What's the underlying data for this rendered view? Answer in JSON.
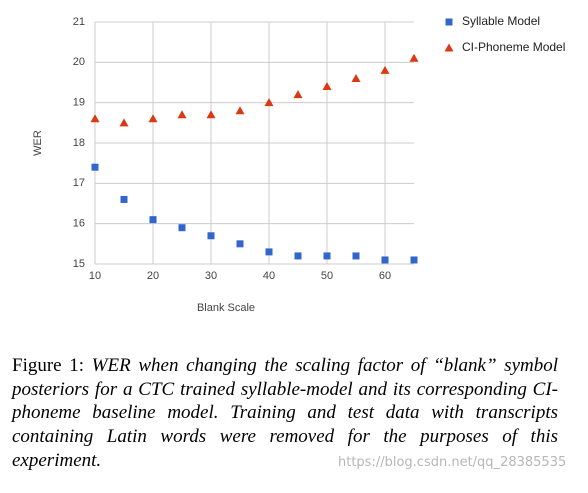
{
  "chart_data": {
    "type": "scatter",
    "x_label": "Blank Scale",
    "y_label": "WER",
    "x": [
      10,
      15,
      20,
      25,
      30,
      35,
      40,
      45,
      50,
      55,
      60,
      65
    ],
    "series": [
      {
        "name": "Syllable Model",
        "color": "#3366cc",
        "marker": "square",
        "values": [
          17.4,
          16.6,
          16.1,
          15.9,
          15.7,
          15.5,
          15.3,
          15.2,
          15.2,
          15.2,
          15.1,
          15.1
        ]
      },
      {
        "name": "CI-Phoneme Model",
        "color": "#dc3912",
        "marker": "triangle",
        "values": [
          18.6,
          18.5,
          18.6,
          18.7,
          18.7,
          18.8,
          19.0,
          19.2,
          19.4,
          19.6,
          19.8,
          20.1
        ]
      }
    ],
    "xlim": [
      10,
      65
    ],
    "ylim": [
      15,
      21
    ],
    "xticks": [
      10,
      20,
      30,
      40,
      50,
      60
    ],
    "yticks": [
      15,
      16,
      17,
      18,
      19,
      20,
      21
    ],
    "grid": true,
    "legend": "right"
  },
  "caption": {
    "label": "Figure 1:",
    "text": "WER when changing the scaling factor of “blank” symbol posteriors for a CTC trained syllable-model and its corresponding CI-phoneme baseline model. Training and test data with transcripts containing Latin words were removed for the purposes of this experiment."
  },
  "watermark": "https://blog.csdn.net/qq_28385535"
}
